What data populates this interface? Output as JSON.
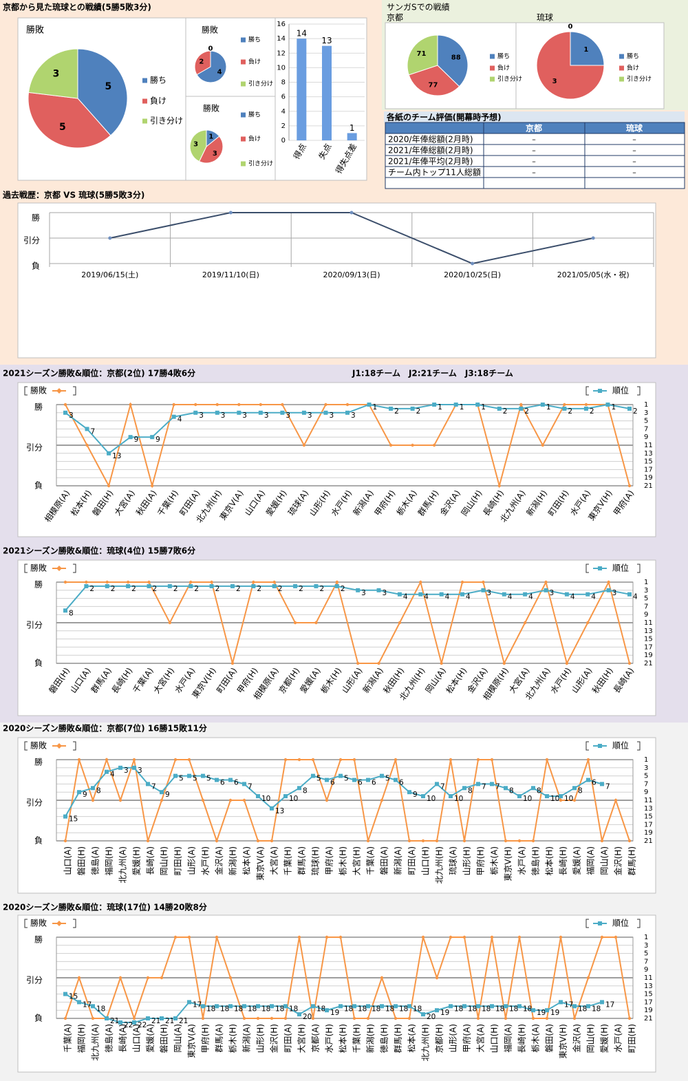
{
  "headings": {
    "record": "京都から見た琉球との戦績(5勝5敗3分)",
    "sanga": "サンガSでの戦績",
    "divisions": "J1:18チーム　J2:21チーム　J3:18チーム"
  },
  "table": {
    "title": "各紙のチーム評価(開幕時予想)",
    "header": [
      "京都",
      "琉球"
    ],
    "rows": [
      [
        "2020/年俸総額(2月時)",
        "–",
        "–"
      ],
      [
        "2021/年俸総額(2月時)",
        "–",
        "–"
      ],
      [
        "2021/年俸平均(2月時)",
        "–",
        "–"
      ],
      [
        "チーム内トップ11人総額",
        "–",
        "–"
      ]
    ]
  },
  "chart_data": [
    {
      "type": "pie",
      "title": "勝敗",
      "categories": [
        "勝ち",
        "負け",
        "引き分け"
      ],
      "colors": [
        "#4f81bd",
        "#e0605e",
        "#b0d46f"
      ],
      "values": [
        5,
        5,
        3
      ]
    },
    {
      "type": "pie",
      "title": "勝敗",
      "categories": [
        "勝ち",
        "負け",
        "引き分け"
      ],
      "colors": [
        "#4f81bd",
        "#e0605e",
        "#b0d46f"
      ],
      "values": [
        4,
        2,
        0
      ]
    },
    {
      "type": "pie",
      "title": "勝敗",
      "categories": [
        "勝ち",
        "負け",
        "引き分け"
      ],
      "colors": [
        "#4f81bd",
        "#e0605e",
        "#b0d46f"
      ],
      "values": [
        1,
        3,
        3
      ]
    },
    {
      "type": "bar",
      "categories": [
        "得点",
        "失点",
        "得失点差"
      ],
      "values": [
        14,
        13,
        1
      ],
      "color": "#6a9de0",
      "ylim": [
        0,
        16
      ],
      "yticks": [
        0,
        2,
        4,
        6,
        8,
        10,
        12,
        14,
        16
      ],
      "grid": true
    },
    {
      "type": "pie",
      "title": "京都",
      "categories": [
        "勝ち",
        "負け",
        "引き分け"
      ],
      "colors": [
        "#4f81bd",
        "#e0605e",
        "#b0d46f"
      ],
      "values": [
        88,
        77,
        71
      ]
    },
    {
      "type": "pie",
      "title": "琉球",
      "categories": [
        "勝ち",
        "負け",
        "引き分け"
      ],
      "colors": [
        "#4f81bd",
        "#e0605e",
        "#b0d46f"
      ],
      "values": [
        1,
        3,
        0
      ]
    },
    {
      "type": "line",
      "title": "過去戦歴：京都 VS 琉球(5勝5敗3分)",
      "categories": [
        "2019/06/15(土)",
        "2019/11/10(日)",
        "2020/09/13(日)",
        "2020/10/25(日)",
        "2021/05/05(水・祝)"
      ],
      "values": [
        1,
        2,
        2,
        0,
        1
      ],
      "color": "#3b4e6b",
      "ylim": [
        0,
        2
      ],
      "yticks": [
        {
          "value": 0,
          "label": "負"
        },
        {
          "value": 1,
          "label": "引分"
        },
        {
          "value": 2,
          "label": "勝"
        }
      ],
      "grid": true
    },
    {
      "type": "line",
      "title": "2021シーズン勝敗&順位：京都(2位) 17勝4敗6分",
      "categories": [
        "相模原(A)",
        "松本(H)",
        "磐田(H)",
        "大宮(A)",
        "秋田(A)",
        "千葉(H)",
        "町田(A)",
        "北九州(H)",
        "東京V(A)",
        "山口(A)",
        "愛媛(H)",
        "琉球(A)",
        "山形(H)",
        "水戸(H)",
        "新潟(A)",
        "甲府(H)",
        "栃木(A)",
        "群馬(H)",
        "金沢(A)",
        "岡山(H)",
        "長崎(H)",
        "北九州(A)",
        "新潟(H)",
        "町田(H)",
        "水戸(A)",
        "東京V(H)",
        "甲府(A)"
      ],
      "ylim": [
        0,
        2
      ],
      "yticks": [
        {
          "value": 0,
          "label": "負"
        },
        {
          "value": 1,
          "label": "引分"
        },
        {
          "value": 2,
          "label": "勝"
        }
      ],
      "y2lim": [
        21,
        1
      ],
      "y2ticks": [
        1,
        3,
        5,
        7,
        9,
        11,
        13,
        15,
        17,
        19,
        21
      ],
      "grid": true,
      "series": [
        {
          "name": "勝敗",
          "color": "#f79646",
          "values": [
            2,
            1,
            0,
            2,
            0,
            2,
            2,
            2,
            2,
            2,
            2,
            1,
            2,
            2,
            2,
            1,
            1,
            1,
            2,
            2,
            0,
            2,
            1,
            2,
            2,
            2,
            0
          ]
        },
        {
          "name": "順位",
          "color": "#4bacc6",
          "axis": "y2",
          "values": [
            3,
            7,
            13,
            9,
            9,
            4,
            3,
            3,
            3,
            3,
            3,
            3,
            3,
            3,
            1,
            2,
            2,
            1,
            1,
            1,
            2,
            2,
            1,
            2,
            2,
            1,
            2
          ]
        }
      ]
    },
    {
      "type": "line",
      "title": "2021シーズン勝敗&順位：琉球(4位) 15勝7敗6分",
      "categories": [
        "磐田(H)",
        "山口(A)",
        "群馬(A)",
        "長崎(H)",
        "千葉(A)",
        "大宮(H)",
        "水戸(A)",
        "東京V(H)",
        "町田(A)",
        "甲府(H)",
        "相模原(A)",
        "京都(H)",
        "愛媛(A)",
        "栃木(H)",
        "山形(A)",
        "新潟(A)",
        "秋田(H)",
        "北九州(H)",
        "岡山(A)",
        "松本(H)",
        "金沢(A)",
        "相模原(H)",
        "大宮(A)",
        "北九州(A)",
        "水戸(H)",
        "山形(A)",
        "秋田(H)",
        "長崎(A)"
      ],
      "ylim": [
        0,
        2
      ],
      "yticks": [
        {
          "value": 0,
          "label": "負"
        },
        {
          "value": 1,
          "label": "引分"
        },
        {
          "value": 2,
          "label": "勝"
        }
      ],
      "y2lim": [
        21,
        1
      ],
      "y2ticks": [
        1,
        3,
        5,
        7,
        9,
        11,
        13,
        15,
        17,
        19,
        21
      ],
      "grid": true,
      "series": [
        {
          "name": "勝敗",
          "color": "#f79646",
          "values": [
            2,
            2,
            2,
            2,
            2,
            1,
            2,
            2,
            0,
            2,
            2,
            1,
            1,
            2,
            0,
            0,
            1,
            2,
            0,
            2,
            2,
            0,
            1,
            2,
            0,
            1,
            2,
            0
          ]
        },
        {
          "name": "順位",
          "color": "#4bacc6",
          "axis": "y2",
          "values": [
            8,
            2,
            2,
            2,
            2,
            2,
            2,
            2,
            2,
            2,
            2,
            2,
            2,
            2,
            3,
            3,
            4,
            4,
            4,
            4,
            3,
            4,
            4,
            3,
            4,
            4,
            3,
            4
          ]
        }
      ]
    },
    {
      "type": "line",
      "title": "2020シーズン勝敗&順位：京都(7位) 16勝15敗11分",
      "categories": [
        "山口(A)",
        "磐田(H)",
        "徳島(A)",
        "福岡(H)",
        "北九州(A)",
        "愛媛(H)",
        "長崎(A)",
        "岡山(H)",
        "町田(H)",
        "山形(A)",
        "水戸(H)",
        "金沢(A)",
        "新潟(H)",
        "松本(A)",
        "東京V(A)",
        "大宮(A)",
        "千葉(H)",
        "群馬(A)",
        "琉球(H)",
        "甲府(A)",
        "栃木(H)",
        "大宮(H)",
        "千葉(A)",
        "磐田(A)",
        "新潟(A)",
        "町田(A)",
        "山口(H)",
        "北九州(H)",
        "琉球(A)",
        "山形(H)",
        "甲府(H)",
        "栃木(A)",
        "東京V(H)",
        "水戸(A)",
        "徳島(H)",
        "松本(H)",
        "長崎(H)",
        "愛媛(A)",
        "福岡(A)",
        "岡山(A)",
        "金沢(H)",
        "群馬(H)"
      ],
      "ylim": [
        0,
        2
      ],
      "yticks": [
        {
          "value": 0,
          "label": "負"
        },
        {
          "value": 1,
          "label": "引分"
        },
        {
          "value": 2,
          "label": "勝"
        }
      ],
      "y2lim": [
        21,
        1
      ],
      "y2ticks": [
        1,
        3,
        5,
        7,
        9,
        11,
        13,
        15,
        17,
        19,
        21
      ],
      "grid": true,
      "series": [
        {
          "name": "勝敗",
          "color": "#f79646",
          "values": [
            0,
            2,
            1,
            2,
            1,
            2,
            0,
            1,
            2,
            2,
            1,
            0,
            1,
            1,
            0,
            0,
            2,
            2,
            2,
            1,
            2,
            2,
            0,
            1,
            2,
            0,
            0,
            0,
            2,
            0,
            2,
            2,
            0,
            0,
            0,
            2,
            1,
            1,
            2,
            0,
            1,
            0
          ]
        },
        {
          "name": "順位",
          "color": "#4bacc6",
          "axis": "y2",
          "values": [
            15,
            9,
            8,
            4,
            3,
            3,
            7,
            9,
            5,
            5,
            5,
            6,
            6,
            7,
            10,
            13,
            10,
            8,
            5,
            6,
            5,
            6,
            6,
            5,
            6,
            9,
            10,
            7,
            10,
            8,
            7,
            7,
            8,
            10,
            8,
            10,
            10,
            8,
            6,
            7,
            null,
            null
          ]
        }
      ]
    },
    {
      "type": "line",
      "title": "2020シーズン勝敗&順位：琉球(17位) 14勝20敗8分",
      "categories": [
        "千葉(A)",
        "福岡(H)",
        "北九州(A)",
        "徳島(A)",
        "長崎(A)",
        "山口(A)",
        "愛媛(A)",
        "磐田(H)",
        "岡山(A)",
        "東京V(A)",
        "甲府(H)",
        "群馬(A)",
        "栃木(H)",
        "新潟(A)",
        "山形(H)",
        "金沢(H)",
        "町田(A)",
        "大宮(H)",
        "京都(A)",
        "水戸(H)",
        "松本(H)",
        "千葉(H)",
        "新潟(H)",
        "徳島(H)",
        "群馬(H)",
        "松本(A)",
        "北九州(H)",
        "京都(H)",
        "山形(A)",
        "甲府(A)",
        "大宮(A)",
        "山口(H)",
        "福岡(A)",
        "長崎(H)",
        "栃木(A)",
        "磐田(A)",
        "東京V(H)",
        "金沢(A)",
        "岡山(H)",
        "愛媛(H)",
        "水戸(A)",
        "町田(H)"
      ],
      "ylim": [
        0,
        2
      ],
      "yticks": [
        {
          "value": 0,
          "label": "負"
        },
        {
          "value": 1,
          "label": "引分"
        },
        {
          "value": 2,
          "label": "勝"
        }
      ],
      "y2lim": [
        21,
        1
      ],
      "y2ticks": [
        1,
        3,
        5,
        7,
        9,
        11,
        13,
        15,
        17,
        19,
        21
      ],
      "grid": true,
      "series": [
        {
          "name": "勝敗",
          "color": "#f79646",
          "values": [
            0,
            1,
            0,
            0,
            1,
            0,
            1,
            1,
            2,
            2,
            0,
            2,
            1,
            0,
            0,
            0,
            0,
            2,
            0,
            2,
            2,
            0,
            0,
            1,
            0,
            0,
            2,
            1,
            2,
            2,
            0,
            2,
            0,
            2,
            0,
            0,
            2,
            0,
            1,
            2,
            2,
            0
          ]
        },
        {
          "name": "順位",
          "color": "#4bacc6",
          "axis": "y2",
          "values": [
            15,
            17,
            18,
            21,
            22,
            22,
            21,
            21,
            21,
            17,
            18,
            18,
            18,
            18,
            18,
            18,
            18,
            20,
            18,
            19,
            18,
            18,
            18,
            18,
            18,
            18,
            20,
            19,
            18,
            18,
            18,
            18,
            18,
            18,
            19,
            19,
            17,
            18,
            18,
            17,
            null,
            null
          ]
        }
      ]
    }
  ]
}
